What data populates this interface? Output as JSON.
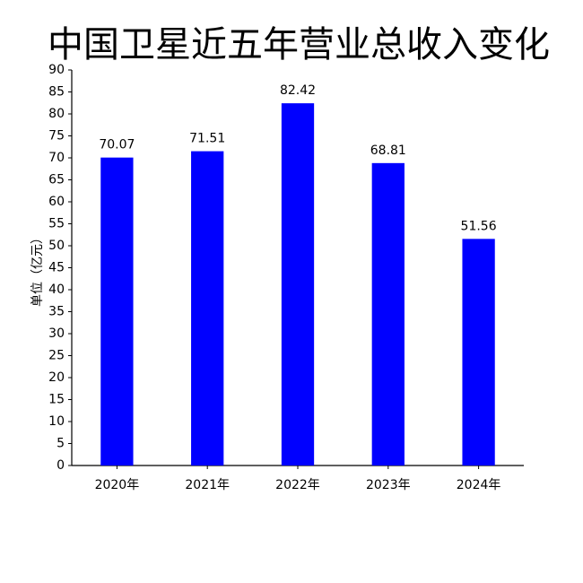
{
  "chart_data": {
    "type": "bar",
    "title": "中国卫星近五年营业总收入变化",
    "y_label": "单位（亿元）",
    "categories": [
      "2020年",
      "2021年",
      "2022年",
      "2023年",
      "2024年"
    ],
    "values": [
      70.07,
      71.51,
      82.42,
      68.81,
      51.56
    ],
    "color": "#0000ff",
    "ylim": [
      0,
      90
    ],
    "yticks": [
      0,
      5,
      10,
      15,
      20,
      25,
      30,
      35,
      40,
      45,
      50,
      55,
      60,
      65,
      70,
      75,
      80,
      85,
      90
    ],
    "grid": false
  }
}
